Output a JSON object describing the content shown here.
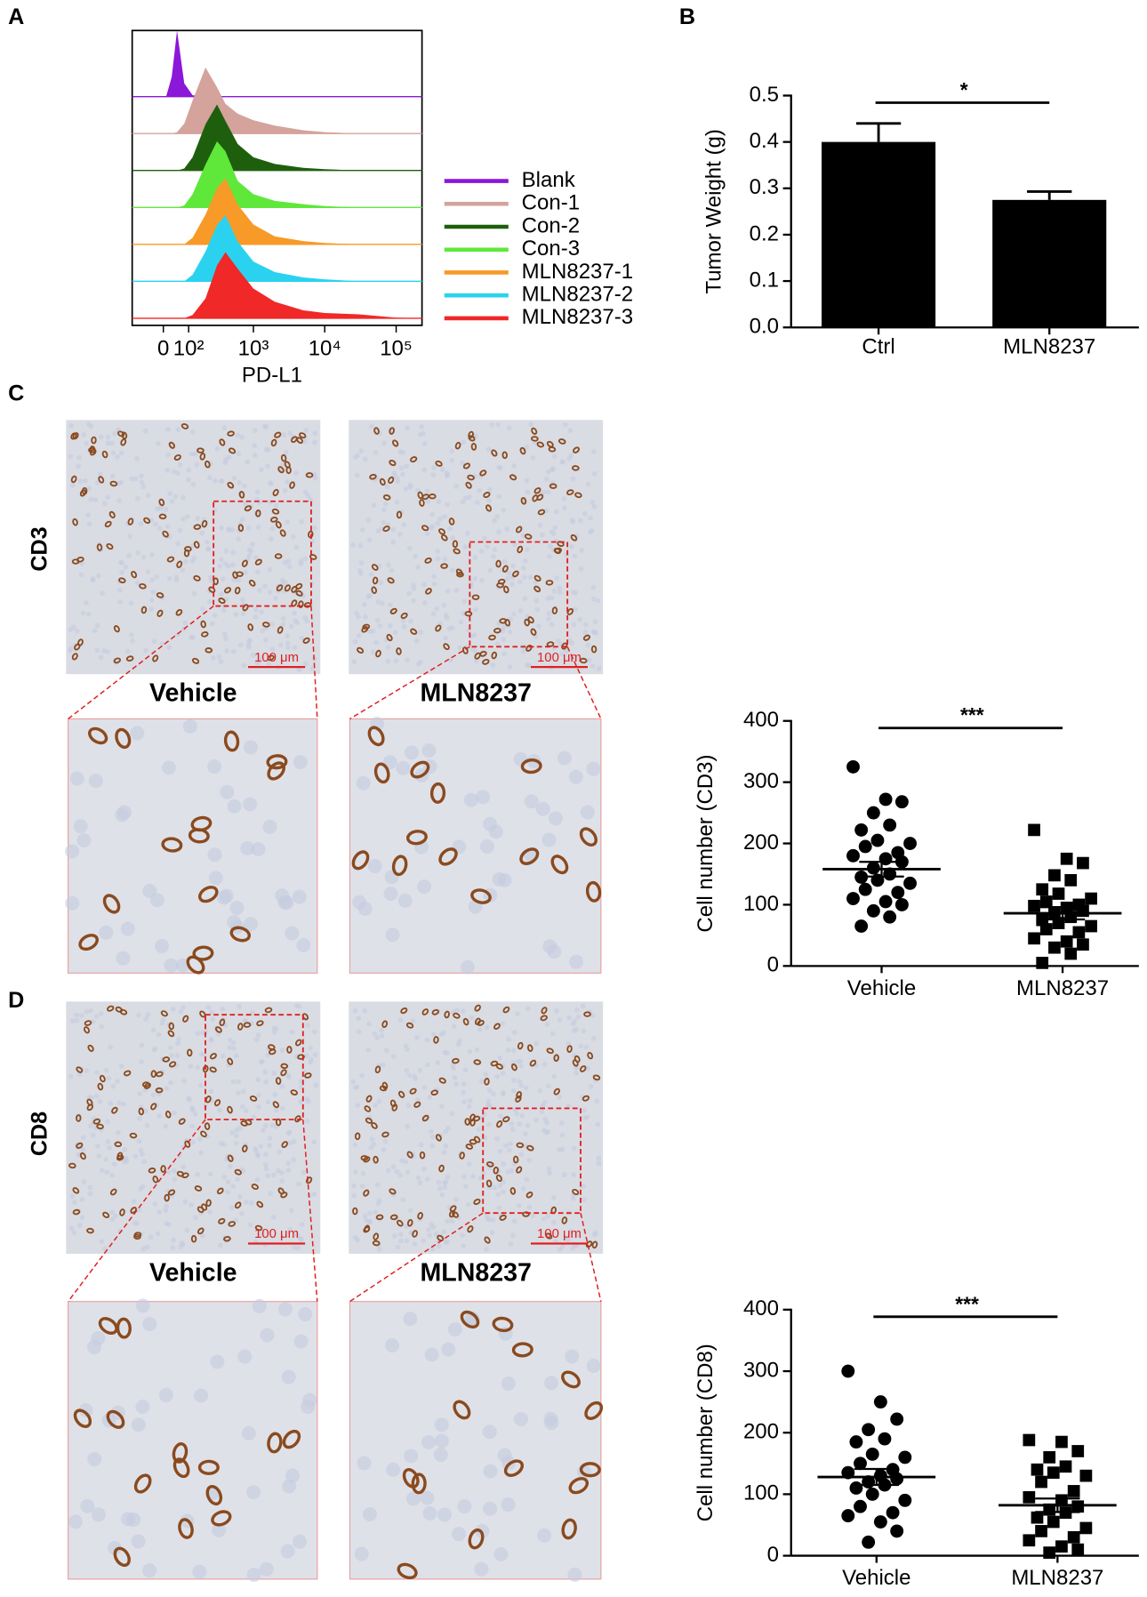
{
  "panel_labels": [
    "A",
    "B",
    "C",
    "D"
  ],
  "chart_data": [
    {
      "type": "density",
      "x_label": "PD-L1",
      "xscale": "asinh",
      "xlim": [
        -130,
        230000
      ],
      "xticks": [
        0,
        {
          "value": 100,
          "label": "10²"
        },
        {
          "value": 1000,
          "label": "10³"
        },
        {
          "value": 10000,
          "label": "10⁴"
        },
        {
          "value": 100000,
          "label": "10⁵"
        }
      ],
      "x": [
        10,
        30,
        50,
        80,
        120,
        200,
        300,
        400,
        600,
        1000,
        2000,
        5000,
        10000,
        30000,
        100000,
        200000
      ],
      "series": [
        {
          "name": "Blank",
          "color": "#8b17d8",
          "values": [
            0,
            0.3,
            1.0,
            0.2,
            0.02,
            0,
            0,
            0,
            0,
            0,
            0,
            0,
            0,
            0,
            0,
            0
          ]
        },
        {
          "name": "Con-1",
          "color": "#d4a39c",
          "values": [
            0,
            0,
            0.02,
            0.15,
            0.5,
            1.0,
            0.7,
            0.45,
            0.3,
            0.2,
            0.12,
            0.05,
            0.02,
            0,
            0,
            0
          ]
        },
        {
          "name": "Con-2",
          "color": "#1e5f0e",
          "values": [
            0,
            0,
            0,
            0.03,
            0.2,
            0.7,
            1.0,
            0.75,
            0.4,
            0.2,
            0.1,
            0.04,
            0.02,
            0,
            0,
            0
          ]
        },
        {
          "name": "Con-3",
          "color": "#5fe83a",
          "values": [
            0,
            0,
            0,
            0.03,
            0.2,
            0.65,
            1.0,
            0.85,
            0.4,
            0.2,
            0.1,
            0.05,
            0.02,
            0,
            0,
            0
          ]
        },
        {
          "name": "MLN8237-1",
          "color": "#f79a28",
          "values": [
            0,
            0,
            0,
            0,
            0.1,
            0.45,
            0.85,
            1.0,
            0.6,
            0.3,
            0.12,
            0.05,
            0.02,
            0,
            0,
            0
          ]
        },
        {
          "name": "MLN8237-2",
          "color": "#2ad2f0",
          "values": [
            0,
            0,
            0,
            0,
            0.1,
            0.45,
            0.85,
            1.0,
            0.6,
            0.3,
            0.14,
            0.06,
            0.03,
            0,
            0,
            0
          ]
        },
        {
          "name": "MLN8237-3",
          "color": "#f02828",
          "values": [
            0,
            0,
            0,
            0,
            0.05,
            0.3,
            0.8,
            1.0,
            0.75,
            0.45,
            0.25,
            0.12,
            0.08,
            0.06,
            0.01,
            0
          ]
        }
      ]
    },
    {
      "type": "bar",
      "y_label": "Tumor Weight (g)",
      "annotation": "*",
      "color": "#000000",
      "categories": [
        "Ctrl",
        "MLN8237"
      ],
      "values": [
        0.4,
        0.275
      ],
      "errors": [
        0.04,
        0.018
      ],
      "ylim": [
        0,
        0.5
      ],
      "yticks": [
        {
          "value": 0,
          "label": "0.0"
        },
        0.1,
        0.2,
        0.3,
        0.4,
        0.5
      ]
    },
    {
      "type": "dotplot",
      "y_label": "Cell number (CD3)",
      "annotation": "***",
      "color": "#000000",
      "markers": [
        "circle",
        "square"
      ],
      "categories": [
        "Vehicle",
        "MLN8237"
      ],
      "values": [
        [
          325,
          272,
          268,
          250,
          230,
          222,
          205,
          200,
          195,
          185,
          180,
          175,
          170,
          160,
          150,
          145,
          140,
          135,
          125,
          120,
          110,
          105,
          100,
          90,
          80,
          65
        ],
        [
          222,
          175,
          168,
          148,
          140,
          125,
          118,
          110,
          105,
          100,
          98,
          95,
          90,
          85,
          80,
          75,
          70,
          65,
          60,
          55,
          45,
          40,
          35,
          30,
          20,
          5
        ]
      ],
      "means": [
        158,
        86
      ],
      "errors": [
        12,
        10
      ],
      "ylim": [
        0,
        400
      ],
      "yticks": [
        0,
        100,
        200,
        300,
        400
      ]
    },
    {
      "type": "dotplot",
      "y_label": "Cell number (CD8)",
      "annotation": "***",
      "color": "#000000",
      "markers": [
        "circle",
        "square"
      ],
      "categories": [
        "Vehicle",
        "MLN8237"
      ],
      "values": [
        [
          300,
          250,
          222,
          205,
          190,
          185,
          165,
          160,
          150,
          140,
          135,
          130,
          125,
          120,
          115,
          110,
          100,
          90,
          80,
          70,
          65,
          55,
          40,
          22
        ],
        [
          188,
          185,
          170,
          160,
          145,
          140,
          135,
          130,
          120,
          105,
          95,
          90,
          80,
          75,
          70,
          62,
          55,
          45,
          40,
          30,
          25,
          15,
          10,
          5
        ]
      ],
      "means": [
        128,
        82
      ],
      "errors": [
        13,
        11
      ],
      "ylim": [
        0,
        400
      ],
      "yticks": [
        0,
        100,
        200,
        300,
        400
      ]
    }
  ],
  "micrographs": [
    {
      "stain": "CD3",
      "groups": [
        "Vehicle",
        "MLN8237"
      ],
      "scale_bar": "100 μm"
    },
    {
      "stain": "CD8",
      "groups": [
        "Vehicle",
        "MLN8237"
      ],
      "scale_bar": "100 μm"
    }
  ]
}
